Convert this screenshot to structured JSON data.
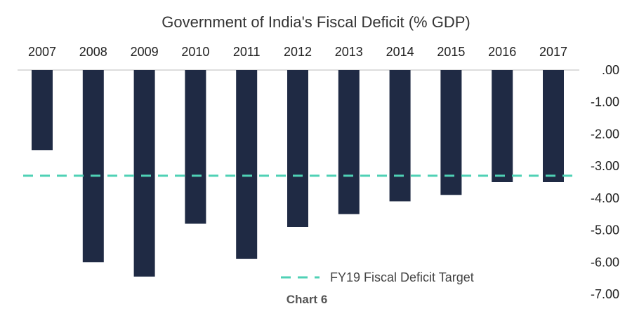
{
  "chart_data": {
    "type": "bar",
    "title": "Government of India's Fiscal Deficit (% GDP)",
    "categories": [
      "2007",
      "2008",
      "2009",
      "2010",
      "2011",
      "2012",
      "2013",
      "2014",
      "2015",
      "2016",
      "2017"
    ],
    "values": [
      -2.5,
      -6.0,
      -6.45,
      -4.8,
      -5.9,
      -4.9,
      -4.5,
      -4.1,
      -3.9,
      -3.5,
      -3.5
    ],
    "ylim": [
      -7.0,
      0.0
    ],
    "yticks": [
      ".00",
      "-1.00",
      "-2.00",
      "-3.00",
      "-4.00",
      "-5.00",
      "-6.00",
      "-7.00"
    ],
    "reference_line": {
      "value": -3.3,
      "label": "FY19 Fiscal Deficit Target",
      "style": "dashed"
    },
    "legend_position": "bottom-center",
    "grid": false,
    "colors": {
      "bar": "#1f2a44",
      "target": "#4fd1b5",
      "axis": "#bbbbbb"
    },
    "caption": "Chart 6"
  }
}
